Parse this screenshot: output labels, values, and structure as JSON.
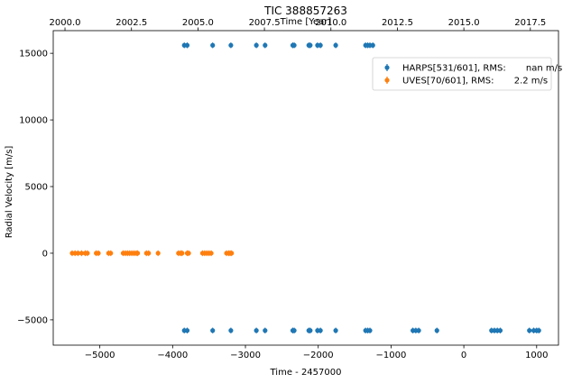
{
  "chart_data": {
    "type": "scatter",
    "title": "TIC 388857263",
    "xlabel": "Time - 2457000",
    "ylabel": "Radial Velocity [m/s]",
    "top_xlabel": "Time [Year]",
    "xlim": [
      -5640,
      1300
    ],
    "ylim": [
      -6900,
      16700
    ],
    "xticks": [
      -5000,
      -4000,
      -3000,
      -2000,
      -1000,
      0,
      1000
    ],
    "xtick_labels": [
      "−5000",
      "−4000",
      "−3000",
      "−2000",
      "−1000",
      "0",
      "1000"
    ],
    "yticks": [
      -5000,
      0,
      5000,
      10000,
      15000
    ],
    "ytick_labels": [
      "−5000",
      "0",
      "5000",
      "10000",
      "15000"
    ],
    "top_xticks": [
      2000.0,
      2002.5,
      2005.0,
      2007.5,
      2010.0,
      2012.5,
      2015.0,
      2017.5
    ],
    "top_xtick_labels": [
      "2000.0",
      "2002.5",
      "2005.0",
      "2007.5",
      "2010.0",
      "2012.5",
      "2015.0",
      "2017.5"
    ],
    "grid": false,
    "legend_position": "top-right",
    "series": [
      {
        "name": "HARPS[531/601], RMS:       nan m/s",
        "color": "#1f77b4",
        "points": [
          [
            -3840,
            15600
          ],
          [
            -3800,
            15600
          ],
          [
            -3450,
            15600
          ],
          [
            -3200,
            15600
          ],
          [
            -2850,
            15600
          ],
          [
            -2730,
            15600
          ],
          [
            -2350,
            15600
          ],
          [
            -2330,
            15600
          ],
          [
            -2130,
            15600
          ],
          [
            -2110,
            15600
          ],
          [
            -2010,
            15600
          ],
          [
            -1970,
            15600
          ],
          [
            -1760,
            15600
          ],
          [
            -1350,
            15600
          ],
          [
            -1320,
            15600
          ],
          [
            -1290,
            15600
          ],
          [
            -1250,
            15600
          ],
          [
            -3840,
            -5800
          ],
          [
            -3800,
            -5800
          ],
          [
            -3450,
            -5800
          ],
          [
            -3200,
            -5800
          ],
          [
            -2850,
            -5800
          ],
          [
            -2730,
            -5800
          ],
          [
            -2350,
            -5800
          ],
          [
            -2330,
            -5800
          ],
          [
            -2130,
            -5800
          ],
          [
            -2110,
            -5800
          ],
          [
            -2010,
            -5800
          ],
          [
            -1970,
            -5800
          ],
          [
            -1760,
            -5800
          ],
          [
            -1350,
            -5800
          ],
          [
            -1320,
            -5800
          ],
          [
            -1290,
            -5800
          ],
          [
            -700,
            -5800
          ],
          [
            -660,
            -5800
          ],
          [
            -620,
            -5800
          ],
          [
            -370,
            -5800
          ],
          [
            380,
            -5800
          ],
          [
            420,
            -5800
          ],
          [
            460,
            -5800
          ],
          [
            500,
            -5800
          ],
          [
            900,
            -5800
          ],
          [
            960,
            -5800
          ],
          [
            1000,
            -5800
          ],
          [
            1030,
            -5800
          ]
        ]
      },
      {
        "name": "UVES[70/601], RMS:       2.2 m/s",
        "color": "#ff7f0e",
        "points": [
          [
            -5380,
            0
          ],
          [
            -5340,
            0
          ],
          [
            -5300,
            0
          ],
          [
            -5250,
            0
          ],
          [
            -5200,
            0
          ],
          [
            -5170,
            0
          ],
          [
            -5050,
            0
          ],
          [
            -5020,
            0
          ],
          [
            -4880,
            0
          ],
          [
            -4850,
            0
          ],
          [
            -4680,
            0
          ],
          [
            -4650,
            0
          ],
          [
            -4620,
            0
          ],
          [
            -4590,
            0
          ],
          [
            -4560,
            0
          ],
          [
            -4530,
            0
          ],
          [
            -4500,
            0
          ],
          [
            -4480,
            0
          ],
          [
            -4360,
            0
          ],
          [
            -4330,
            0
          ],
          [
            -4200,
            0
          ],
          [
            -3920,
            0
          ],
          [
            -3890,
            0
          ],
          [
            -3870,
            0
          ],
          [
            -3800,
            0
          ],
          [
            -3780,
            0
          ],
          [
            -3590,
            0
          ],
          [
            -3560,
            0
          ],
          [
            -3530,
            0
          ],
          [
            -3500,
            0
          ],
          [
            -3470,
            0
          ],
          [
            -3260,
            0
          ],
          [
            -3230,
            0
          ],
          [
            -3210,
            0
          ],
          [
            -3190,
            0
          ]
        ]
      }
    ]
  }
}
